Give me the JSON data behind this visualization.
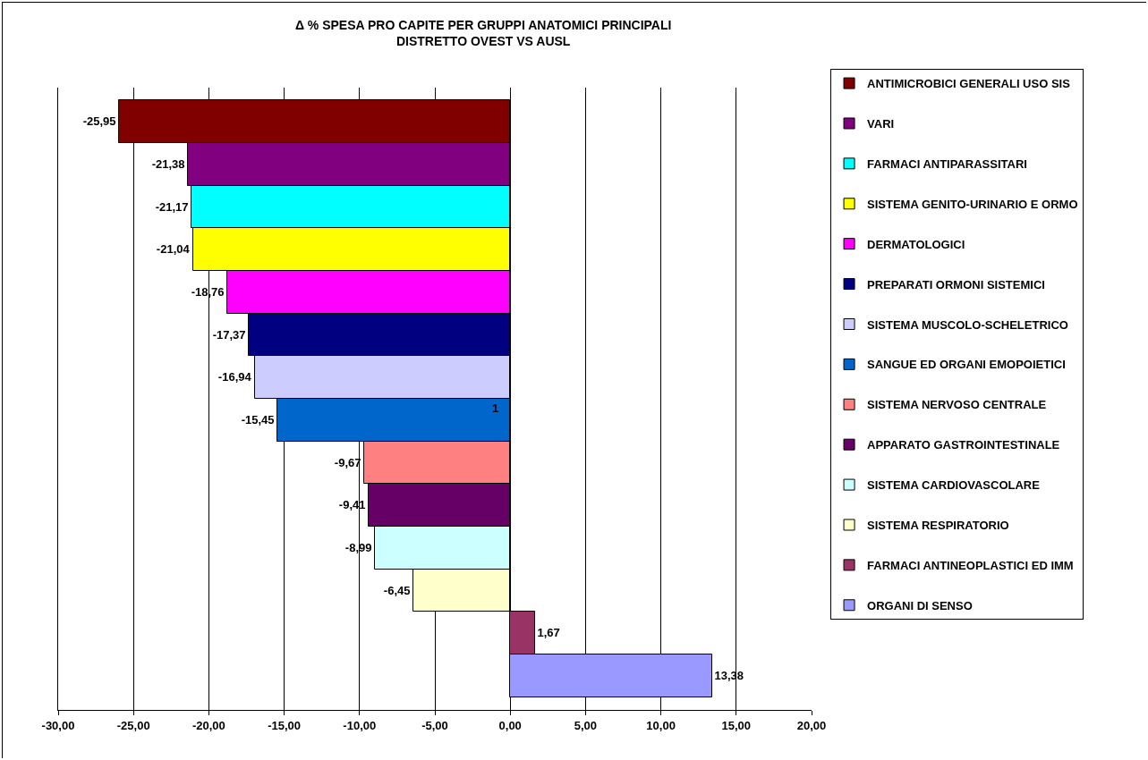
{
  "chart_data": {
    "type": "bar",
    "orientation": "horizontal",
    "title": "Δ % SPESA PRO CAPITE PER GRUPPI ANATOMICI PRINCIPALI\nDISTRETTO OVEST VS AUSL",
    "categories": [
      null,
      null,
      null,
      null,
      null,
      null,
      null,
      null,
      null,
      null,
      null,
      null,
      null,
      null
    ],
    "series": [
      {
        "name": "ANTIMICROBICI GENERALI USO SIS",
        "color": "#800000",
        "values": [
          -25.95,
          null,
          null,
          null,
          null,
          null,
          null,
          null,
          null,
          null,
          null,
          null,
          null,
          null
        ],
        "value_labels": [
          "-25,95",
          null,
          null,
          null,
          null,
          null,
          null,
          null,
          null,
          null,
          null,
          null,
          null,
          null
        ]
      },
      {
        "name": "VARI",
        "color": "#800080",
        "values": [
          null,
          -21.38,
          null,
          null,
          null,
          null,
          null,
          null,
          null,
          null,
          null,
          null,
          null,
          null
        ],
        "value_labels": [
          null,
          "-21,38",
          null,
          null,
          null,
          null,
          null,
          null,
          null,
          null,
          null,
          null,
          null,
          null
        ]
      },
      {
        "name": "FARMACI ANTIPARASSITARI",
        "color": "#00ffff",
        "values": [
          null,
          null,
          -21.17,
          null,
          null,
          null,
          null,
          null,
          null,
          null,
          null,
          null,
          null,
          null
        ],
        "value_labels": [
          null,
          null,
          "-21,17",
          null,
          null,
          null,
          null,
          null,
          null,
          null,
          null,
          null,
          null,
          null
        ]
      },
      {
        "name": "SISTEMA GENITO-URINARIO E ORMO",
        "color": "#ffff00",
        "values": [
          null,
          null,
          null,
          -21.04,
          null,
          null,
          null,
          null,
          null,
          null,
          null,
          null,
          null,
          null
        ],
        "value_labels": [
          null,
          null,
          null,
          "-21,04",
          null,
          null,
          null,
          null,
          null,
          null,
          null,
          null,
          null,
          null
        ]
      },
      {
        "name": "DERMATOLOGICI",
        "color": "#ff00ff",
        "values": [
          null,
          null,
          null,
          null,
          -18.76,
          null,
          null,
          null,
          null,
          null,
          null,
          null,
          null,
          null
        ],
        "value_labels": [
          null,
          null,
          null,
          null,
          "-18,76",
          null,
          null,
          null,
          null,
          null,
          null,
          null,
          null,
          null
        ]
      },
      {
        "name": "PREPARATI ORMONI SISTEMICI",
        "color": "#000080",
        "values": [
          null,
          null,
          null,
          null,
          null,
          -17.37,
          null,
          null,
          null,
          null,
          null,
          null,
          null,
          null
        ],
        "value_labels": [
          null,
          null,
          null,
          null,
          null,
          "-17,37",
          null,
          null,
          null,
          null,
          null,
          null,
          null,
          null
        ]
      },
      {
        "name": "SISTEMA MUSCOLO-SCHELETRICO",
        "color": "#ccccff",
        "values": [
          null,
          null,
          null,
          null,
          null,
          null,
          -16.94,
          null,
          null,
          null,
          null,
          null,
          null,
          null
        ],
        "value_labels": [
          null,
          null,
          null,
          null,
          null,
          null,
          "-16,94",
          null,
          null,
          null,
          null,
          null,
          null,
          null
        ]
      },
      {
        "name": "SANGUE ED ORGANI EMOPOIETICI",
        "color": "#0066cc",
        "values": [
          null,
          null,
          null,
          null,
          null,
          null,
          null,
          -15.45,
          null,
          null,
          null,
          null,
          null,
          null
        ],
        "value_labels": [
          null,
          null,
          null,
          null,
          null,
          null,
          null,
          "-15,45",
          null,
          null,
          null,
          null,
          null,
          null
        ]
      },
      {
        "name": "SISTEMA NERVOSO CENTRALE",
        "color": "#ff8080",
        "values": [
          null,
          null,
          null,
          null,
          null,
          null,
          null,
          null,
          -9.67,
          null,
          null,
          null,
          null,
          null
        ],
        "value_labels": [
          null,
          null,
          null,
          null,
          null,
          null,
          null,
          null,
          "-9,67",
          null,
          null,
          null,
          null,
          null
        ]
      },
      {
        "name": "APPARATO GASTROINTESTINALE",
        "color": "#660066",
        "values": [
          null,
          null,
          null,
          null,
          null,
          null,
          null,
          null,
          null,
          -9.41,
          null,
          null,
          null,
          null
        ],
        "value_labels": [
          null,
          null,
          null,
          null,
          null,
          null,
          null,
          null,
          null,
          "-9,41",
          null,
          null,
          null,
          null
        ]
      },
      {
        "name": "SISTEMA CARDIOVASCOLARE",
        "color": "#ccffff",
        "values": [
          null,
          null,
          null,
          null,
          null,
          null,
          null,
          null,
          null,
          null,
          -8.99,
          null,
          null,
          null
        ],
        "value_labels": [
          null,
          null,
          null,
          null,
          null,
          null,
          null,
          null,
          null,
          null,
          "-8,99",
          null,
          null,
          null
        ]
      },
      {
        "name": "SISTEMA RESPIRATORIO",
        "color": "#ffffcc",
        "values": [
          null,
          null,
          null,
          null,
          null,
          null,
          null,
          null,
          null,
          null,
          null,
          -6.45,
          null,
          null
        ],
        "value_labels": [
          null,
          null,
          null,
          null,
          null,
          null,
          null,
          null,
          null,
          null,
          null,
          "-6,45",
          null,
          null
        ]
      },
      {
        "name": "FARMACI ANTINEOPLASTICI ED IMM",
        "color": "#993366",
        "values": [
          null,
          null,
          null,
          null,
          null,
          null,
          null,
          null,
          null,
          null,
          null,
          null,
          1.67,
          null
        ],
        "value_labels": [
          null,
          null,
          null,
          null,
          null,
          null,
          null,
          null,
          null,
          null,
          null,
          null,
          "1,67",
          null
        ]
      },
      {
        "name": "ORGANI DI SENSO",
        "color": "#9999ff",
        "values": [
          null,
          null,
          null,
          null,
          null,
          null,
          null,
          null,
          null,
          null,
          null,
          null,
          null,
          13.38
        ],
        "value_labels": [
          null,
          null,
          null,
          null,
          null,
          null,
          null,
          null,
          null,
          null,
          null,
          null,
          null,
          "13,38"
        ]
      }
    ],
    "xlim": [
      -30,
      20
    ],
    "xticks": [
      {
        "value": -30,
        "label": "-30,00"
      },
      {
        "value": -25,
        "label": "-25,00"
      },
      {
        "value": -20,
        "label": "-20,00"
      },
      {
        "value": -15,
        "label": "-15,00"
      },
      {
        "value": -10,
        "label": "-10,00"
      },
      {
        "value": -5,
        "label": "-5,00"
      },
      {
        "value": 0,
        "label": "0,00"
      },
      {
        "value": 5,
        "label": "5,00"
      },
      {
        "value": 10,
        "label": "10,00"
      },
      {
        "value": 15,
        "label": "15,00"
      },
      {
        "value": 20,
        "label": "20,00"
      }
    ],
    "grid": "x",
    "legend": "right",
    "tick_labels": "x",
    "annotations": [
      "1"
    ]
  }
}
